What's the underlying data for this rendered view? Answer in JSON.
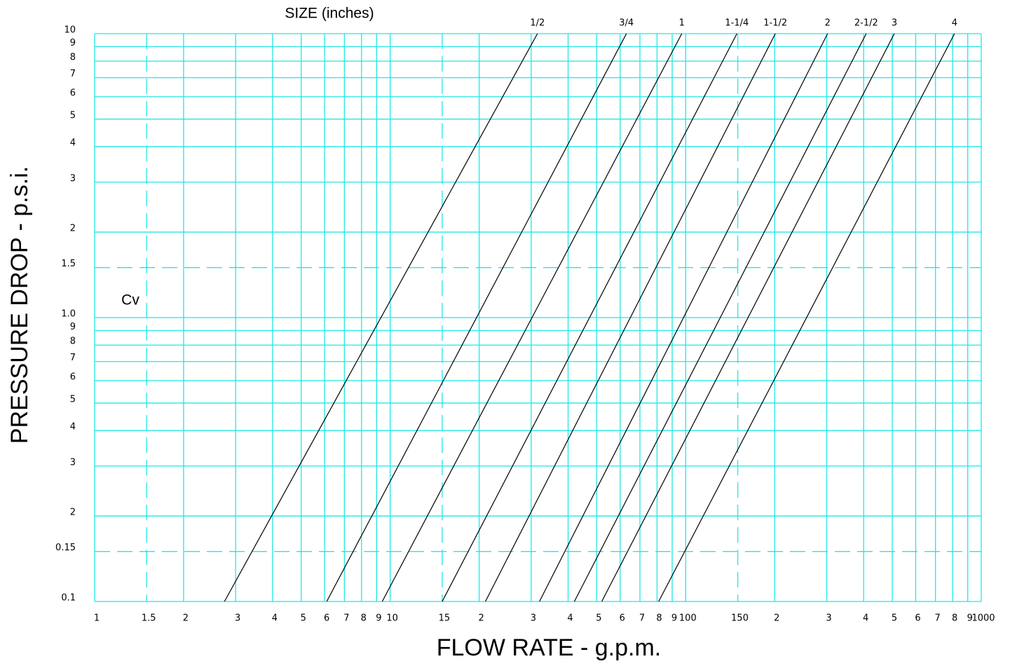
{
  "chart_data": {
    "type": "line",
    "title": "SIZE (inches)",
    "annotation": "Cv",
    "xlabel": "FLOW RATE - g.p.m.",
    "ylabel": "PRESSURE DROP - p.s.i.",
    "xscale": "log",
    "yscale": "log",
    "grid": true,
    "grid_color": "#22e6e6",
    "xlim": [
      1,
      1000
    ],
    "ylim": [
      0.1,
      10
    ],
    "xticks": [
      1,
      1.5,
      2,
      3,
      4,
      5,
      6,
      7,
      8,
      9,
      10,
      15,
      {
        "value": 20,
        "label": "2"
      },
      {
        "value": 30,
        "label": "3"
      },
      {
        "value": 40,
        "label": "4"
      },
      {
        "value": 50,
        "label": "5"
      },
      {
        "value": 60,
        "label": "6"
      },
      {
        "value": 70,
        "label": "7"
      },
      {
        "value": 80,
        "label": "8"
      },
      {
        "value": 90,
        "label": "9"
      },
      100,
      150,
      {
        "value": 200,
        "label": "2"
      },
      {
        "value": 300,
        "label": "3"
      },
      {
        "value": 400,
        "label": "4"
      },
      {
        "value": 500,
        "label": "5"
      },
      {
        "value": 600,
        "label": "6"
      },
      {
        "value": 700,
        "label": "7"
      },
      {
        "value": 800,
        "label": "8"
      },
      {
        "value": 900,
        "label": "9"
      },
      1000
    ],
    "yticks": [
      0.1,
      0.15,
      {
        "value": 0.2,
        "label": "2"
      },
      {
        "value": 0.3,
        "label": "3"
      },
      {
        "value": 0.4,
        "label": "4"
      },
      {
        "value": 0.5,
        "label": "5"
      },
      {
        "value": 0.6,
        "label": "6"
      },
      {
        "value": 0.7,
        "label": "7"
      },
      {
        "value": 0.8,
        "label": "8"
      },
      {
        "value": 0.9,
        "label": "9"
      },
      {
        "value": 1,
        "label": "1.0"
      },
      1.5,
      2,
      3,
      4,
      5,
      6,
      7,
      8,
      9,
      10
    ],
    "series": [
      {
        "name": "1/2",
        "color": "#000000",
        "x": [
          2.75,
          31.5
        ],
        "y": [
          0.1,
          10
        ]
      },
      {
        "name": "3/4",
        "color": "#000000",
        "x": [
          6.1,
          63
        ],
        "y": [
          0.1,
          10
        ]
      },
      {
        "name": "1",
        "color": "#000000",
        "x": [
          9.4,
          97
        ],
        "y": [
          0.1,
          10
        ]
      },
      {
        "name": "1-1/4",
        "color": "#000000",
        "x": [
          15,
          149
        ],
        "y": [
          0.1,
          10
        ]
      },
      {
        "name": "1-1/2",
        "color": "#000000",
        "x": [
          21,
          201
        ],
        "y": [
          0.1,
          10
        ]
      },
      {
        "name": "2",
        "color": "#000000",
        "x": [
          32,
          302
        ],
        "y": [
          0.1,
          10
        ]
      },
      {
        "name": "2-1/2",
        "color": "#000000",
        "x": [
          42,
          408
        ],
        "y": [
          0.1,
          10
        ]
      },
      {
        "name": "3",
        "color": "#000000",
        "x": [
          52,
          508
        ],
        "y": [
          0.1,
          10
        ]
      },
      {
        "name": "4",
        "color": "#000000",
        "x": [
          81,
          812
        ],
        "y": [
          0.1,
          10
        ]
      }
    ]
  }
}
